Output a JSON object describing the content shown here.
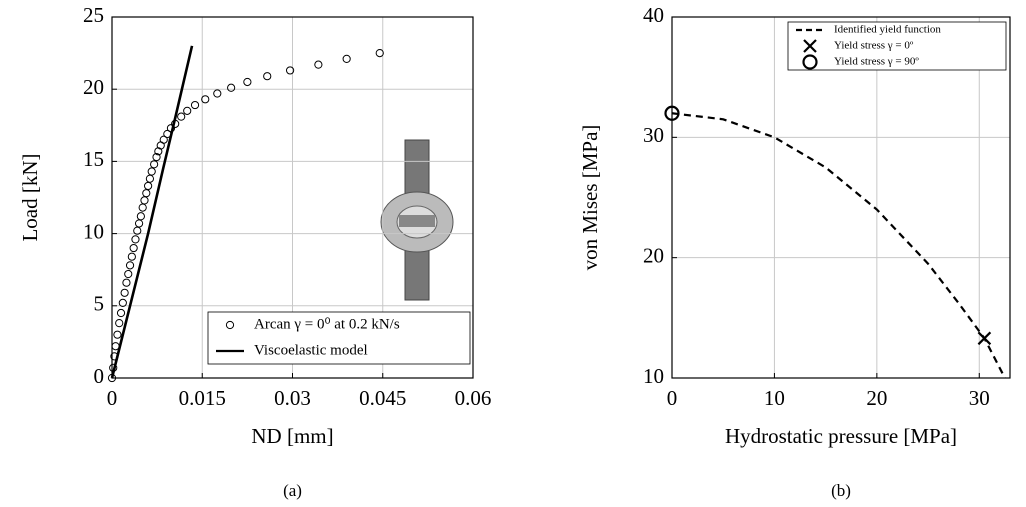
{
  "chart_data": [
    {
      "type": "scatter",
      "xlabel": "ND [mm]",
      "ylabel": "Load [kN]",
      "caption": "(a)",
      "xlim": [
        0,
        0.06
      ],
      "xticks": [
        0,
        0.015,
        0.03,
        0.045,
        0.06
      ],
      "ylim": [
        0,
        25
      ],
      "yticks": [
        0,
        5,
        10,
        15,
        20,
        25
      ],
      "grid": true,
      "legend": "lower right",
      "series": [
        {
          "name": "Arcan γ = 0⁰ at 0.2 kN/s",
          "style": "circle",
          "color": "#000000",
          "x": [
            0,
            0.0002,
            0.0004,
            0.0006,
            0.0009,
            0.0012,
            0.0015,
            0.0018,
            0.0021,
            0.0024,
            0.0027,
            0.003,
            0.0033,
            0.0036,
            0.0039,
            0.0042,
            0.0045,
            0.0048,
            0.0051,
            0.0054,
            0.0057,
            0.006,
            0.0063,
            0.0066,
            0.007,
            0.0074,
            0.0077,
            0.0081,
            0.0086,
            0.0092,
            0.0098,
            0.0105,
            0.0115,
            0.0125,
            0.0138,
            0.0155,
            0.0175,
            0.0198,
            0.0225,
            0.0258,
            0.0296,
            0.0343,
            0.039,
            0.0445
          ],
          "values": [
            0,
            0.7,
            1.5,
            2.2,
            3.0,
            3.8,
            4.5,
            5.2,
            5.9,
            6.6,
            7.2,
            7.8,
            8.4,
            9.0,
            9.6,
            10.2,
            10.7,
            11.2,
            11.8,
            12.3,
            12.8,
            13.3,
            13.8,
            14.3,
            14.8,
            15.3,
            15.7,
            16.1,
            16.5,
            16.9,
            17.3,
            17.6,
            18.1,
            18.5,
            18.9,
            19.3,
            19.7,
            20.1,
            20.5,
            20.9,
            21.3,
            21.7,
            22.1,
            22.5
          ]
        },
        {
          "name": "Viscoelastic model",
          "style": "line",
          "color": "#000000",
          "x": [
            0,
            0.003,
            0.006,
            0.0085,
            0.0105,
            0.0133
          ],
          "values": [
            0,
            5,
            10,
            14.5,
            18,
            23
          ]
        }
      ]
    },
    {
      "type": "line",
      "xlabel": "Hydrostatic pressure [MPa]",
      "ylabel": "von Mises [MPa]",
      "caption": "(b)",
      "xlim": [
        0,
        33
      ],
      "xticks": [
        0,
        10,
        20,
        30
      ],
      "ylim": [
        10,
        40
      ],
      "yticks": [
        10,
        20,
        30,
        40
      ],
      "grid": true,
      "legend": "upper right",
      "series": [
        {
          "name": "Identified yield function",
          "style": "dashed",
          "color": "#000000",
          "x": [
            0,
            5,
            10,
            15,
            20,
            25,
            28,
            30.5,
            32.5
          ],
          "values": [
            32,
            31.5,
            30,
            27.5,
            24,
            19.5,
            16.2,
            13.3,
            10
          ]
        },
        {
          "name": "Yield stress γ = 0º",
          "style": "cross",
          "color": "#000000",
          "x": [
            30.5
          ],
          "values": [
            13.3
          ]
        },
        {
          "name": "Yield stress γ = 90º",
          "style": "circle-big",
          "color": "#000000",
          "x": [
            0
          ],
          "values": [
            32
          ]
        }
      ]
    }
  ]
}
